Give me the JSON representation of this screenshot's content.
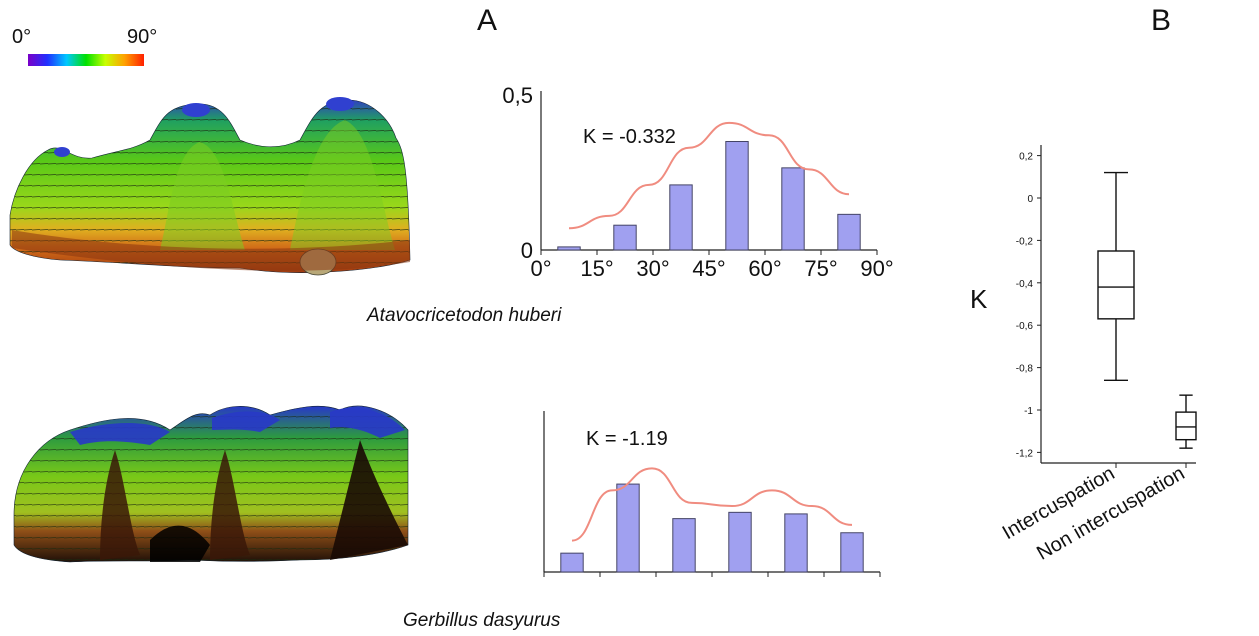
{
  "panel_a_label": "A",
  "panel_b_label": "B",
  "colorbar": {
    "min_label": "0°",
    "max_label": "90°",
    "colors": [
      "#7a00c8",
      "#2030ff",
      "#00c8ff",
      "#00e000",
      "#c8ff00",
      "#ffa000",
      "#ff2000"
    ]
  },
  "species": [
    "Atavocricetodon huberi",
    "Gerbillus dasyurus"
  ],
  "chart_data": [
    {
      "type": "bar",
      "series": [
        {
          "name": "",
          "values": [
            0.01,
            0.08,
            0.21,
            0.35,
            0.265,
            0.115
          ]
        }
      ],
      "curve": [
        0.07,
        0.11,
        0.21,
        0.33,
        0.41,
        0.37,
        0.26,
        0.18
      ],
      "annotation": "K = -0.332",
      "xticks": [
        "0°",
        "15°",
        "30°",
        "45°",
        "60°",
        "75°",
        "90°"
      ],
      "xlim": [
        0,
        90
      ],
      "yticks": [
        "0",
        "0,5"
      ],
      "ylim": [
        0,
        0.5
      ],
      "grid": false,
      "colors": {
        "bar": "#a0a0f0",
        "bar_stroke": "#444466",
        "curve": "#f08c80"
      }
    },
    {
      "type": "bar",
      "series": [
        {
          "name": "",
          "values": [
            0.06,
            0.28,
            0.17,
            0.19,
            0.185,
            0.125
          ]
        }
      ],
      "curve": [
        0.1,
        0.26,
        0.33,
        0.22,
        0.21,
        0.26,
        0.21,
        0.15
      ],
      "annotation": "K = -1.19",
      "xticks": [
        "",
        "",
        "",
        "",
        "",
        "",
        ""
      ],
      "xlim": [
        0,
        90
      ],
      "yticks": [],
      "ylim": [
        0,
        0.5
      ],
      "grid": false,
      "colors": {
        "bar": "#a0a0f0",
        "bar_stroke": "#444466",
        "curve": "#f08c80"
      }
    },
    {
      "type": "box",
      "ylabel": "K",
      "categories": [
        "Intercuspation",
        "Non intercuspation"
      ],
      "boxes": [
        {
          "min": -0.86,
          "q1": -0.57,
          "median": -0.42,
          "q3": -0.25,
          "max": 0.12
        },
        {
          "min": -1.18,
          "q1": -1.14,
          "median": -1.08,
          "q3": -1.01,
          "max": -0.93
        }
      ],
      "ylim": [
        -1.25,
        0.25
      ],
      "yticks": [
        "0,2",
        "0",
        "-0,2",
        "-0,4",
        "-0,6",
        "-0,8",
        "-1",
        "-1,2"
      ],
      "ytick_values": [
        0.2,
        0,
        -0.2,
        -0.4,
        -0.6,
        -0.8,
        -1,
        -1.2
      ],
      "grid": false
    }
  ]
}
